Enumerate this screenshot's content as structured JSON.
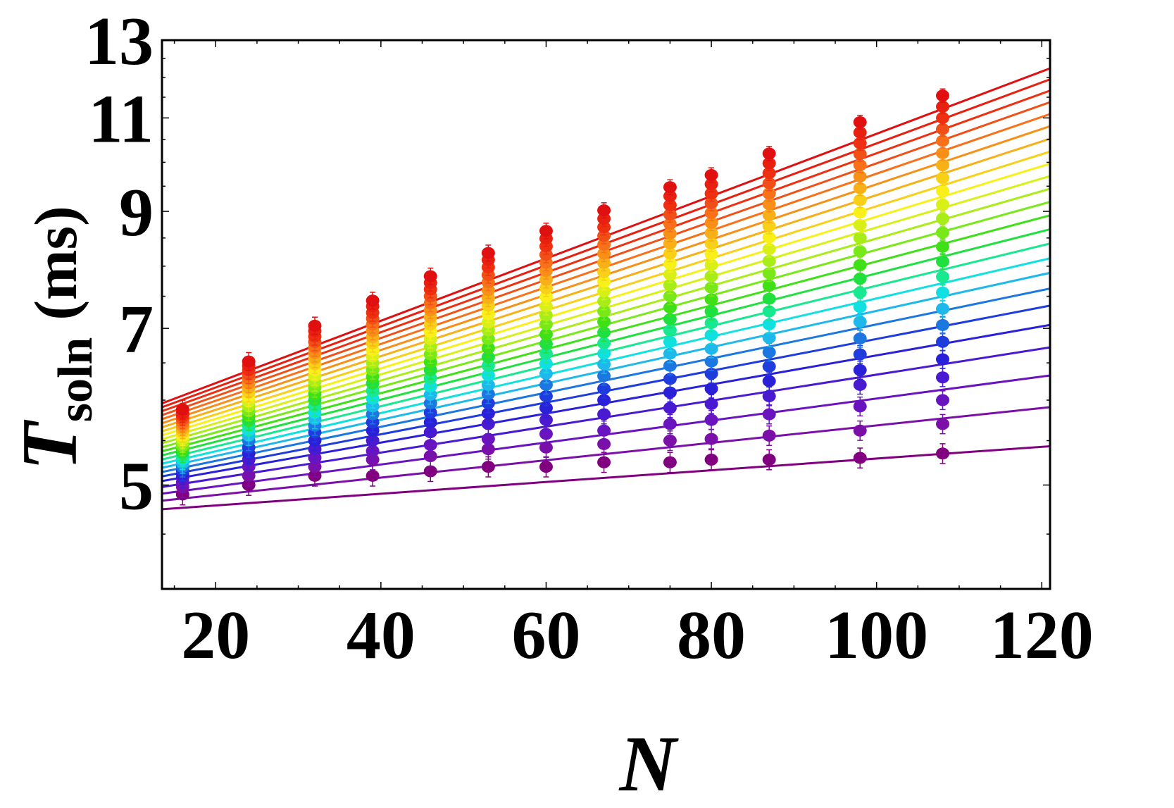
{
  "chart_data": {
    "type": "scatter",
    "title": "",
    "xlabel": "N",
    "ylabel_main": "T",
    "ylabel_sub": "soln",
    "ylabel_unit": "(ms)",
    "xlim": [
      13.5,
      121
    ],
    "ylim": [
      4.0,
      13.0
    ],
    "y_scale": "log",
    "x_ticks": [
      20,
      40,
      60,
      80,
      100,
      120
    ],
    "x_tick_labels": [
      "20",
      "40",
      "60",
      "80",
      "100",
      "120"
    ],
    "y_ticks": [
      5,
      7,
      9,
      11,
      13
    ],
    "y_tick_labels": [
      "5",
      "7",
      "9",
      "11",
      "13"
    ],
    "grid": false,
    "legend": "none",
    "x": [
      16,
      24,
      32,
      39,
      46,
      53,
      60,
      67,
      75,
      80,
      87,
      98,
      108
    ],
    "series": [
      {
        "color": "#800080",
        "fit": [
          4.66,
          0.0064
        ],
        "values": [
          4.9,
          5.0,
          5.1,
          5.1,
          5.15,
          5.2,
          5.2,
          5.25,
          5.25,
          5.28,
          5.28,
          5.3,
          5.35
        ]
      },
      {
        "color": "#7a10a8",
        "fit": [
          4.7,
          0.01
        ],
        "values": [
          4.98,
          5.1,
          5.2,
          5.28,
          5.32,
          5.4,
          5.42,
          5.46,
          5.5,
          5.52,
          5.56,
          5.62,
          5.7
        ]
      },
      {
        "color": "#6a14c0",
        "fit": [
          4.73,
          0.0132
        ],
        "values": [
          5.03,
          5.2,
          5.3,
          5.38,
          5.45,
          5.52,
          5.58,
          5.62,
          5.7,
          5.75,
          5.82,
          5.92,
          6.0
        ]
      },
      {
        "color": "#4a1ad0",
        "fit": [
          4.76,
          0.0162
        ],
        "values": [
          5.08,
          5.28,
          5.4,
          5.5,
          5.6,
          5.7,
          5.75,
          5.82,
          5.9,
          5.95,
          6.05,
          6.2,
          6.3
        ]
      },
      {
        "color": "#2a20d8",
        "fit": [
          4.79,
          0.0187
        ],
        "values": [
          5.12,
          5.35,
          5.5,
          5.62,
          5.72,
          5.83,
          5.9,
          6.0,
          6.1,
          6.15,
          6.25,
          6.4,
          6.55
        ]
      },
      {
        "color": "#1f3cdc",
        "fit": [
          4.81,
          0.021
        ],
        "values": [
          5.16,
          5.42,
          5.6,
          5.72,
          5.84,
          5.96,
          6.05,
          6.15,
          6.28,
          6.35,
          6.45,
          6.62,
          6.8
        ]
      },
      {
        "color": "#1c78e0",
        "fit": [
          4.83,
          0.0231
        ],
        "values": [
          5.2,
          5.5,
          5.68,
          5.82,
          5.96,
          6.08,
          6.2,
          6.32,
          6.46,
          6.52,
          6.65,
          6.85,
          7.05
        ]
      },
      {
        "color": "#1fb8ea",
        "fit": [
          4.85,
          0.0251
        ],
        "values": [
          5.24,
          5.56,
          5.76,
          5.92,
          6.07,
          6.2,
          6.35,
          6.48,
          6.63,
          6.7,
          6.86,
          7.1,
          7.3
        ]
      },
      {
        "color": "#10e0e0",
        "fit": [
          4.87,
          0.027
        ],
        "values": [
          5.28,
          5.62,
          5.84,
          6.02,
          6.18,
          6.33,
          6.49,
          6.63,
          6.8,
          6.9,
          7.06,
          7.33,
          7.56
        ]
      },
      {
        "color": "#18e890",
        "fit": [
          4.89,
          0.029
        ],
        "values": [
          5.32,
          5.68,
          5.92,
          6.12,
          6.29,
          6.46,
          6.63,
          6.78,
          6.97,
          7.08,
          7.26,
          7.56,
          7.82
        ]
      },
      {
        "color": "#20e040",
        "fit": [
          4.91,
          0.031
        ],
        "values": [
          5.36,
          5.74,
          6.0,
          6.22,
          6.4,
          6.58,
          6.77,
          6.94,
          7.14,
          7.26,
          7.46,
          7.79,
          8.08
        ]
      },
      {
        "color": "#40e018",
        "fit": [
          4.93,
          0.033
        ],
        "values": [
          5.4,
          5.8,
          6.08,
          6.31,
          6.51,
          6.71,
          6.91,
          7.1,
          7.32,
          7.45,
          7.67,
          8.02,
          8.34
        ]
      },
      {
        "color": "#78e818",
        "fit": [
          4.95,
          0.035
        ],
        "values": [
          5.44,
          5.86,
          6.16,
          6.4,
          6.62,
          6.84,
          7.06,
          7.26,
          7.5,
          7.64,
          7.88,
          8.26,
          8.6
        ]
      },
      {
        "color": "#a8ec18",
        "fit": [
          4.97,
          0.037
        ],
        "values": [
          5.48,
          5.92,
          6.24,
          6.5,
          6.73,
          6.97,
          7.2,
          7.42,
          7.68,
          7.83,
          8.09,
          8.5,
          8.86
        ]
      },
      {
        "color": "#d8f018",
        "fit": [
          4.99,
          0.039
        ],
        "values": [
          5.52,
          5.98,
          6.32,
          6.59,
          6.84,
          7.09,
          7.34,
          7.58,
          7.86,
          8.02,
          8.3,
          8.74,
          9.13
        ]
      },
      {
        "color": "#f8f018",
        "fit": [
          5.01,
          0.041
        ],
        "values": [
          5.56,
          6.04,
          6.4,
          6.68,
          6.95,
          7.22,
          7.49,
          7.74,
          8.04,
          8.21,
          8.51,
          8.98,
          9.4
        ]
      },
      {
        "color": "#f8d018",
        "fit": [
          5.03,
          0.043
        ],
        "values": [
          5.6,
          6.1,
          6.48,
          6.78,
          7.06,
          7.35,
          7.63,
          7.9,
          8.22,
          8.4,
          8.72,
          9.22,
          9.67
        ]
      },
      {
        "color": "#f8b018",
        "fit": [
          5.05,
          0.0452
        ],
        "values": [
          5.64,
          6.16,
          6.56,
          6.87,
          7.17,
          7.47,
          7.77,
          8.06,
          8.4,
          8.59,
          8.93,
          9.46,
          9.94
        ]
      },
      {
        "color": "#f89018",
        "fit": [
          5.07,
          0.0474
        ],
        "values": [
          5.68,
          6.22,
          6.64,
          6.96,
          7.28,
          7.6,
          7.92,
          8.22,
          8.58,
          8.78,
          9.14,
          9.7,
          10.2
        ]
      },
      {
        "color": "#f87018",
        "fit": [
          5.09,
          0.0496
        ],
        "values": [
          5.72,
          6.28,
          6.72,
          7.06,
          7.39,
          7.73,
          8.06,
          8.38,
          8.76,
          8.97,
          9.35,
          9.94,
          10.47
        ]
      },
      {
        "color": "#f05018",
        "fit": [
          5.11,
          0.0518
        ],
        "values": [
          5.76,
          6.34,
          6.8,
          7.15,
          7.5,
          7.85,
          8.2,
          8.54,
          8.94,
          9.16,
          9.56,
          10.18,
          10.74
        ]
      },
      {
        "color": "#ee3010",
        "fit": [
          5.13,
          0.054
        ],
        "values": [
          5.8,
          6.4,
          6.88,
          7.24,
          7.61,
          7.98,
          8.35,
          8.7,
          9.12,
          9.35,
          9.77,
          10.42,
          11.0
        ]
      },
      {
        "color": "#e82010",
        "fit": [
          5.15,
          0.0562
        ],
        "values": [
          5.84,
          6.46,
          6.96,
          7.34,
          7.72,
          8.11,
          8.49,
          8.86,
          9.3,
          9.54,
          9.98,
          10.66,
          11.27
        ]
      },
      {
        "color": "#e01010",
        "fit": [
          5.17,
          0.0584
        ],
        "values": [
          5.88,
          6.52,
          7.04,
          7.43,
          7.83,
          8.23,
          8.63,
          9.02,
          9.48,
          9.73,
          10.19,
          10.9,
          11.54
        ]
      }
    ]
  }
}
